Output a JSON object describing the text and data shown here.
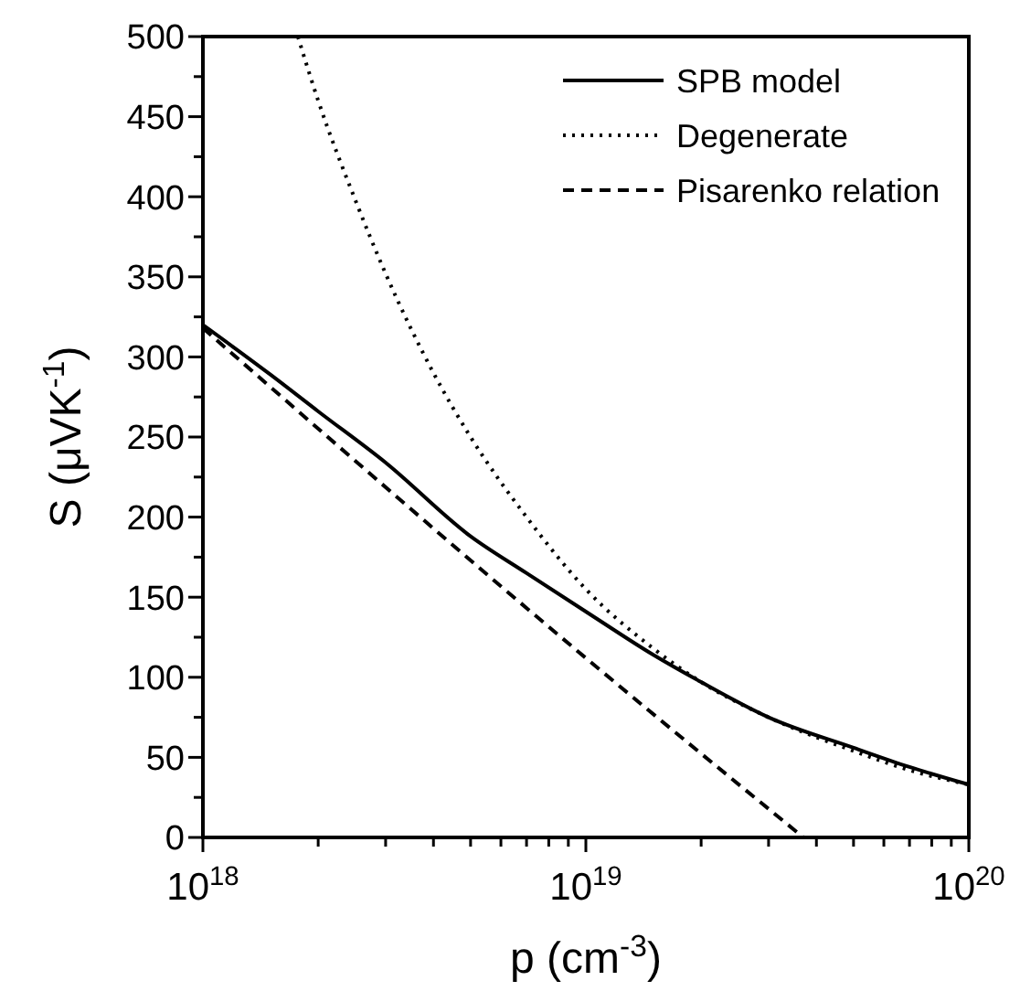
{
  "chart_data": {
    "type": "line",
    "xlabel": "p (cm$^{-3}$)",
    "ylabel": "S (μVK$^{-1}$)",
    "log": "x",
    "legend": "top right",
    "xlim": [
      1e+18,
      1e+20
    ],
    "ylim": [
      0,
      500
    ],
    "xticks": [
      {
        "value": 1e+18,
        "label": "10$^{18}$"
      },
      {
        "value": 2e+18,
        "label": null
      },
      {
        "value": 3e+18,
        "label": null
      },
      {
        "value": 4e+18,
        "label": null
      },
      {
        "value": 5e+18,
        "label": null
      },
      {
        "value": 6e+18,
        "label": null
      },
      {
        "value": 7e+18,
        "label": null
      },
      {
        "value": 8e+18,
        "label": null
      },
      {
        "value": 9e+18,
        "label": null
      },
      {
        "value": 1e+19,
        "label": "10$^{19}$"
      },
      {
        "value": 2e+19,
        "label": null
      },
      {
        "value": 3e+19,
        "label": null
      },
      {
        "value": 4e+19,
        "label": null
      },
      {
        "value": 5e+19,
        "label": null
      },
      {
        "value": 6e+19,
        "label": null
      },
      {
        "value": 7e+19,
        "label": null
      },
      {
        "value": 8e+19,
        "label": null
      },
      {
        "value": 9e+19,
        "label": null
      },
      {
        "value": 1e+20,
        "label": "10$^{20}$"
      }
    ],
    "yticks": [
      0,
      {
        "value": 25,
        "label": null
      },
      50,
      {
        "value": 75,
        "label": null
      },
      100,
      {
        "value": 125,
        "label": null
      },
      150,
      {
        "value": 175,
        "label": null
      },
      200,
      {
        "value": 225,
        "label": null
      },
      250,
      {
        "value": 275,
        "label": null
      },
      300,
      {
        "value": 325,
        "label": null
      },
      350,
      {
        "value": 375,
        "label": null
      },
      400,
      {
        "value": 425,
        "label": null
      },
      450,
      {
        "value": 475,
        "label": null
      },
      500
    ],
    "series": [
      {
        "name": "SPB model",
        "color": "#000000",
        "line_style": "solid",
        "x": [
          1e+18,
          1.5e+18,
          2e+18,
          3e+18,
          5e+18,
          7e+18,
          1e+19,
          1.5e+19,
          2e+19,
          3e+19,
          5e+19,
          7e+19,
          1e+20
        ],
        "values": [
          320,
          289,
          266,
          234,
          188,
          165,
          141,
          114,
          97,
          75,
          56,
          44,
          33
        ]
      },
      {
        "name": "Degenerate",
        "color": "#000000",
        "line_style": "dotted",
        "x": [
          1.77e+18,
          2e+18,
          2.5e+18,
          3e+18,
          4e+18,
          5e+18,
          7e+18,
          1e+19,
          1.5e+19,
          2e+19,
          3e+19,
          5e+19,
          7e+19,
          1e+20
        ],
        "values": [
          500,
          460,
          398,
          352,
          290,
          250,
          200,
          155,
          118,
          97,
          75,
          54,
          42,
          33
        ]
      },
      {
        "name": "Pisarenko relation",
        "color": "#000000",
        "line_style": "dashed",
        "x": [
          1e+18,
          1e+19,
          3.7e+19
        ],
        "values": [
          318,
          112,
          0
        ]
      }
    ]
  }
}
